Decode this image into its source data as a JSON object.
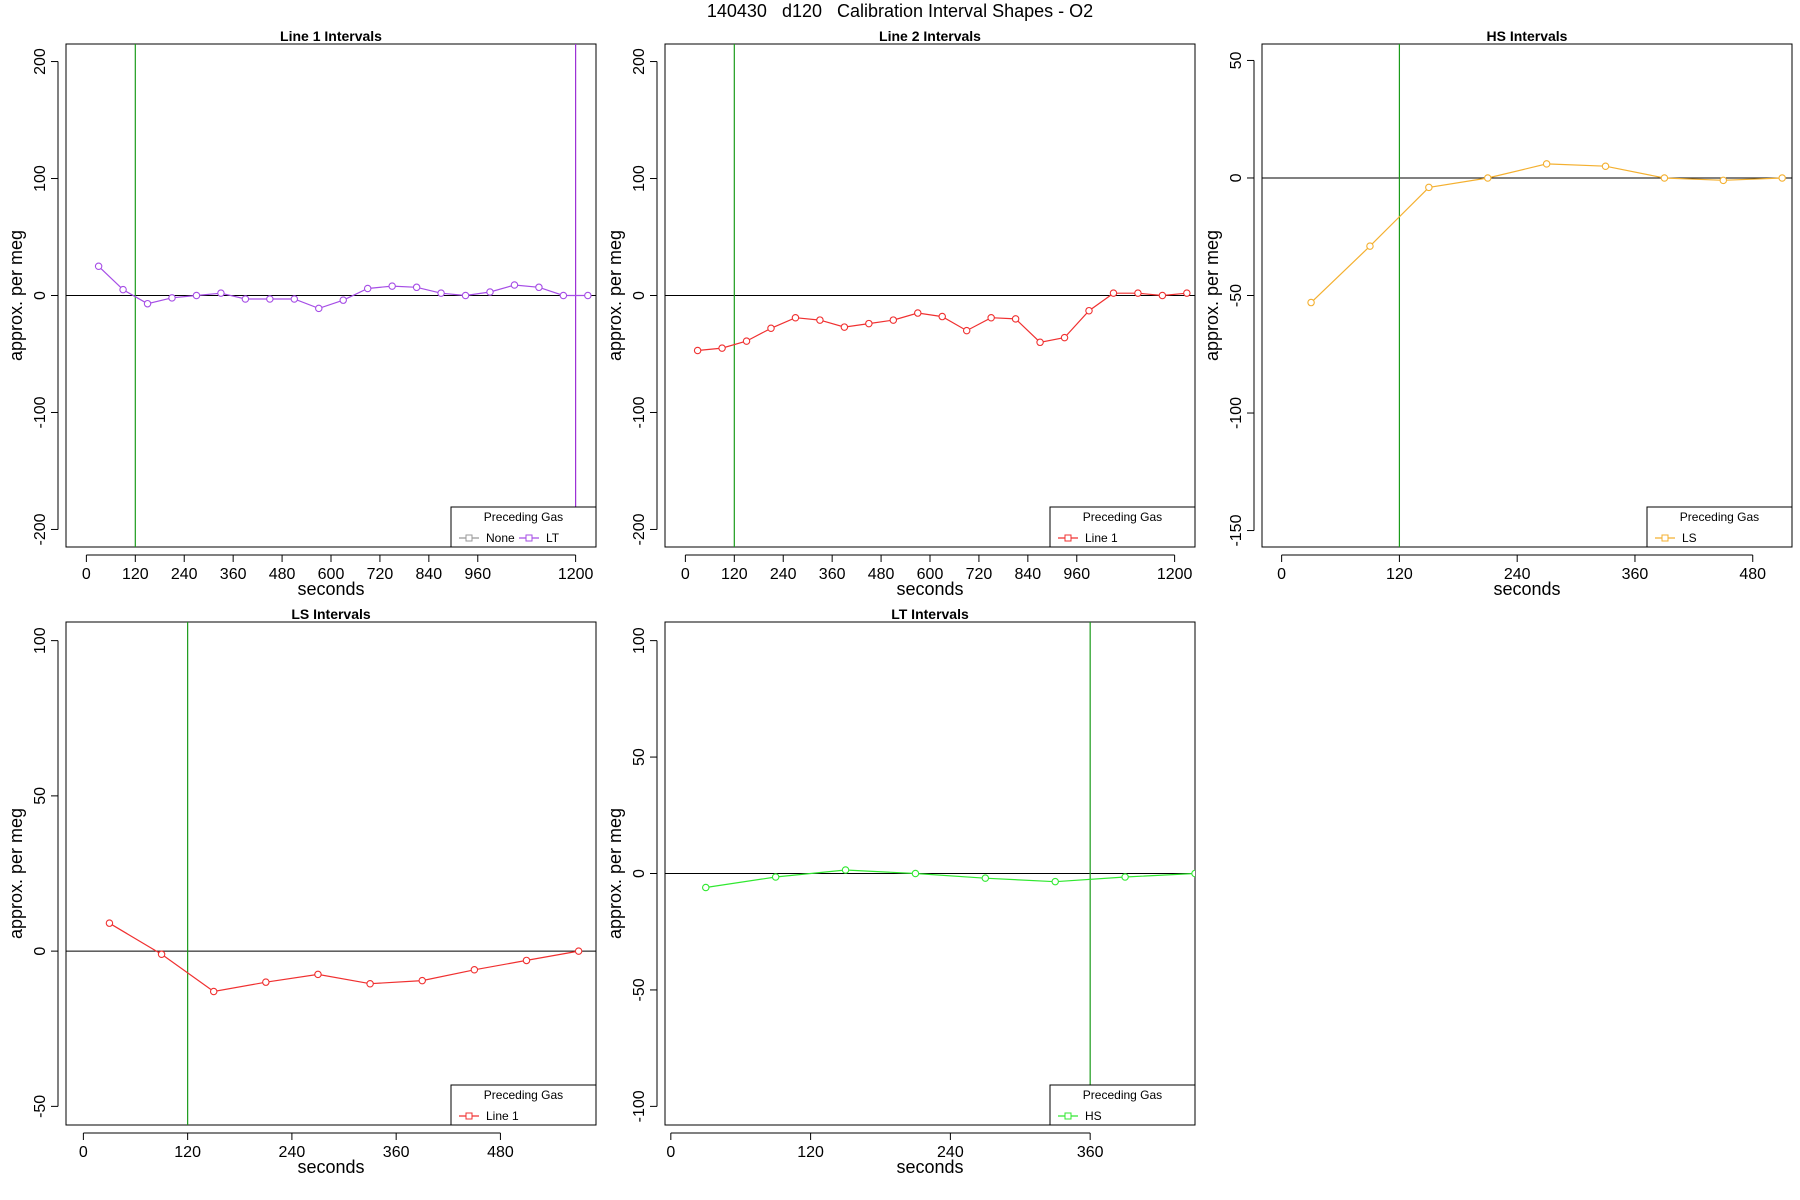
{
  "figure_title": "140430   d120   Calibration Interval Shapes - O2",
  "colors": {
    "axis": "#000000",
    "zero_line": "#000000",
    "vline_green": "#1a9a1a",
    "vline_purple": "#9b30d6",
    "none_gray": "#999999",
    "LT": "#a64ee6",
    "line1": "#f03030",
    "LS": "#f4b030",
    "HS": "#30e830"
  },
  "chart_data": [
    {
      "type": "line",
      "title": "Line 1 Intervals",
      "xlabel": "seconds",
      "ylabel": "approx. per meg",
      "xlim": [
        -50,
        1250
      ],
      "ylim": [
        -215,
        215
      ],
      "xticks": [
        0,
        120,
        240,
        360,
        480,
        600,
        720,
        840,
        960,
        1200
      ],
      "yticks": [
        -200,
        -100,
        0,
        100,
        200
      ],
      "hlines": [
        0
      ],
      "vlines": [
        {
          "x": 120,
          "color": "vline_green"
        },
        {
          "x": 1200,
          "color": "vline_purple"
        }
      ],
      "legend": {
        "title": "Preceding Gas",
        "position": "bottom-right",
        "entries": [
          {
            "label": "None",
            "color": "none_gray"
          },
          {
            "label": "LT",
            "color": "LT"
          }
        ]
      },
      "series": [
        {
          "name": "LT",
          "color": "LT",
          "x": [
            30,
            90,
            150,
            210,
            270,
            330,
            390,
            450,
            510,
            570,
            630,
            690,
            750,
            810,
            870,
            930,
            990,
            1050,
            1110,
            1170,
            1230
          ],
          "y": [
            25,
            5,
            -7,
            -2,
            0,
            2,
            -3,
            -3,
            -3,
            -11,
            -4,
            6,
            8,
            7,
            2,
            0,
            3,
            9,
            7,
            0,
            0
          ]
        }
      ]
    },
    {
      "type": "line",
      "title": "Line 2 Intervals",
      "xlabel": "seconds",
      "ylabel": "approx. per meg",
      "xlim": [
        -50,
        1250
      ],
      "ylim": [
        -215,
        215
      ],
      "xticks": [
        0,
        120,
        240,
        360,
        480,
        600,
        720,
        840,
        960,
        1200
      ],
      "yticks": [
        -200,
        -100,
        0,
        100,
        200
      ],
      "hlines": [
        0
      ],
      "vlines": [
        {
          "x": 120,
          "color": "vline_green"
        }
      ],
      "legend": {
        "title": "Preceding Gas",
        "position": "bottom-right",
        "entries": [
          {
            "label": "Line 1",
            "color": "line1"
          }
        ]
      },
      "series": [
        {
          "name": "Line 1",
          "color": "line1",
          "x": [
            30,
            90,
            150,
            210,
            270,
            330,
            390,
            450,
            510,
            570,
            630,
            690,
            750,
            810,
            870,
            930,
            990,
            1050,
            1110,
            1170,
            1230
          ],
          "y": [
            -47,
            -45,
            -39,
            -28,
            -19,
            -21,
            -27,
            -24,
            -21,
            -15,
            -18,
            -30,
            -19,
            -20,
            -40,
            -36,
            -13,
            2,
            2,
            0,
            2
          ]
        }
      ]
    },
    {
      "type": "line",
      "title": "HS Intervals",
      "xlabel": "seconds",
      "ylabel": "approx. per meg",
      "xlim": [
        -20,
        520
      ],
      "ylim": [
        -157,
        57
      ],
      "xticks": [
        0,
        120,
        240,
        360,
        480
      ],
      "yticks": [
        -150,
        -100,
        -50,
        0,
        50
      ],
      "hlines": [
        0
      ],
      "vlines": [
        {
          "x": 120,
          "color": "vline_green"
        }
      ],
      "legend": {
        "title": "Preceding Gas",
        "position": "bottom-right",
        "entries": [
          {
            "label": "LS",
            "color": "LS"
          }
        ]
      },
      "series": [
        {
          "name": "LS",
          "color": "LS",
          "x": [
            30,
            90,
            150,
            210,
            270,
            330,
            390,
            450,
            510
          ],
          "y": [
            -53,
            -29,
            -4,
            0,
            6,
            5,
            0,
            -1,
            0
          ]
        }
      ]
    },
    {
      "type": "line",
      "title": "LS Intervals",
      "xlabel": "seconds",
      "ylabel": "approx. per meg",
      "xlim": [
        -20,
        590
      ],
      "ylim": [
        -56,
        106
      ],
      "xticks": [
        0,
        120,
        240,
        360,
        480
      ],
      "yticks": [
        -50,
        0,
        50,
        100
      ],
      "hlines": [
        0
      ],
      "vlines": [
        {
          "x": 120,
          "color": "vline_green"
        }
      ],
      "legend": {
        "title": "Preceding Gas",
        "position": "bottom-right",
        "entries": [
          {
            "label": "Line 1",
            "color": "line1"
          }
        ]
      },
      "series": [
        {
          "name": "Line 1",
          "color": "line1",
          "x": [
            30,
            90,
            150,
            210,
            270,
            330,
            390,
            450,
            510,
            570
          ],
          "y": [
            9,
            -1,
            -13,
            -10,
            -7.5,
            -10.5,
            -9.5,
            -6,
            -3,
            0
          ]
        }
      ]
    },
    {
      "type": "line",
      "title": "LT Intervals",
      "xlabel": "seconds",
      "ylabel": "approx. per meg",
      "xlim": [
        -5,
        450
      ],
      "ylim": [
        -108,
        108
      ],
      "xticks": [
        0,
        120,
        240,
        360
      ],
      "yticks": [
        -100,
        -50,
        0,
        50,
        100
      ],
      "hlines": [
        0
      ],
      "vlines": [
        {
          "x": 360,
          "color": "vline_green"
        }
      ],
      "legend": {
        "title": "Preceding Gas",
        "position": "bottom-right",
        "entries": [
          {
            "label": "HS",
            "color": "HS"
          }
        ]
      },
      "series": [
        {
          "name": "HS",
          "color": "HS",
          "x": [
            30,
            90,
            150,
            210,
            270,
            330,
            390,
            450
          ],
          "y": [
            -6,
            -1.5,
            1.5,
            0,
            -2,
            -3.5,
            -1.5,
            0
          ]
        }
      ]
    }
  ]
}
